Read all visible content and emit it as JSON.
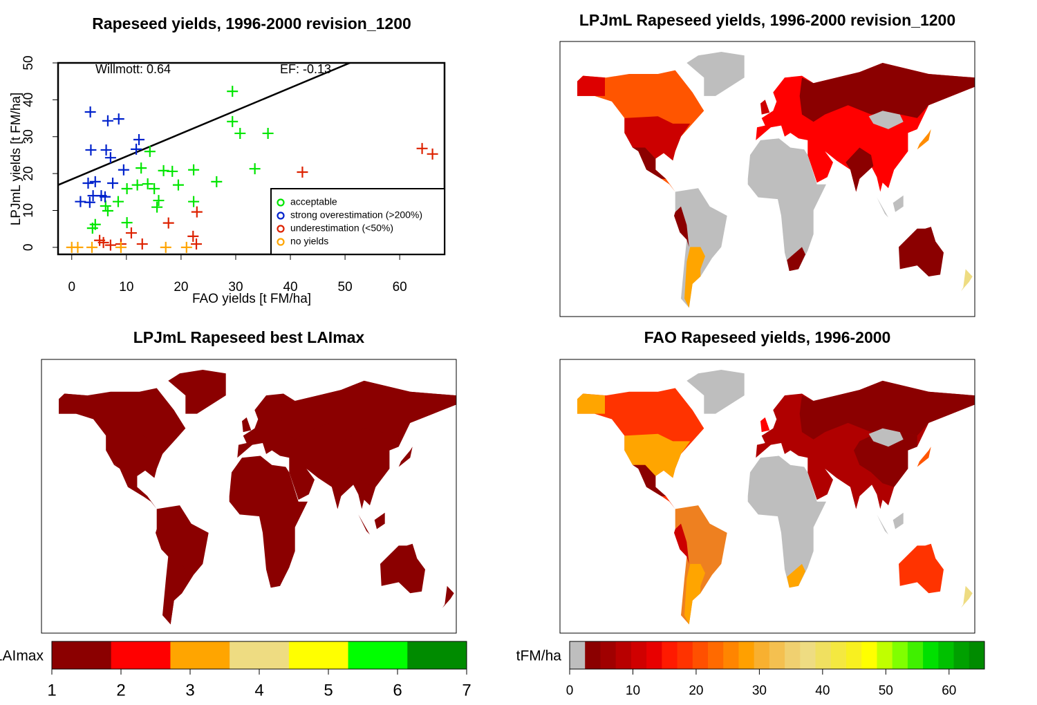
{
  "chart_data": [
    {
      "type": "scatter",
      "title": "Rapeseed yields, 1996-2000 revision_1200",
      "x_label": "FAO yields [t FM/ha]",
      "y_label": "LPJmL yields [t FM/ha]",
      "annotations": [
        "Willmott: 0.64",
        "EF: -0.13"
      ],
      "xlim": [
        -2.5,
        68.2
      ],
      "ylim": [
        -1.9,
        50
      ],
      "xticks": [
        0,
        10,
        20,
        30,
        40,
        50,
        60
      ],
      "yticks": [
        0,
        10,
        20,
        30,
        40,
        50
      ],
      "fit_line": {
        "intercept": 18.45,
        "slope": 0.62
      },
      "series": [
        {
          "name": "acceptable",
          "color": "#00e600",
          "x": [
            29.4,
            29.4,
            30.8,
            35.9,
            33.5,
            14.3,
            16.8,
            18.4,
            22.3,
            19.5,
            26.5,
            12.7,
            10.1,
            13.9,
            15.1,
            12.0,
            8.5,
            6.2,
            4.3,
            3.8,
            6.6,
            10.1,
            15.9,
            22.3,
            15.6
          ],
          "y": [
            42.3,
            34.1,
            30.9,
            30.9,
            21.3,
            26.0,
            20.8,
            20.6,
            21.0,
            16.9,
            17.8,
            21.5,
            15.9,
            17.2,
            15.9,
            16.9,
            12.4,
            11.2,
            6.2,
            5.2,
            9.9,
            6.7,
            12.7,
            12.4,
            10.9
          ]
        },
        {
          "name": "strong overestimation (>200%)",
          "color": "#0022cc",
          "x": [
            3.4,
            6.6,
            8.6,
            3.5,
            6.3,
            7.1,
            12.3,
            11.8,
            9.5,
            3.0,
            4.3,
            7.5,
            1.6,
            3.9,
            5.4,
            3.3,
            6.1
          ],
          "y": [
            36.7,
            34.3,
            34.8,
            26.4,
            26.4,
            24.3,
            29.2,
            26.6,
            21.0,
            17.4,
            17.8,
            17.4,
            12.4,
            14.0,
            14.0,
            12.2,
            13.7
          ]
        },
        {
          "name": "underestimation (<50%)",
          "color": "#dd2200",
          "x": [
            64.1,
            66.0,
            42.2,
            22.9,
            17.7,
            10.9,
            12.9,
            22.8,
            22.2,
            5.8,
            9.0,
            7.1,
            5.1
          ],
          "y": [
            26.8,
            25.3,
            20.4,
            9.6,
            6.6,
            3.9,
            0.9,
            0.9,
            3.0,
            1.3,
            0.9,
            0.6,
            1.9
          ]
        },
        {
          "name": "no yields",
          "color": "#ffa500",
          "x": [
            0,
            3.7,
            17.2,
            21.0,
            9.0,
            1.1
          ],
          "y": [
            0,
            0,
            0,
            0,
            0,
            0
          ]
        }
      ]
    },
    {
      "type": "map",
      "title": "LPJmL Rapeseed yields, 1996-2000 revision_1200"
    },
    {
      "type": "map",
      "title": "LPJmL Rapeseed best LAImax",
      "colorbar": {
        "label": "LAImax",
        "lim": [
          1,
          7
        ],
        "ticks": [
          1,
          2,
          3,
          4,
          5,
          6,
          7
        ],
        "colors": [
          "#8b0000",
          "#ff0000",
          "#ffa500",
          "#eedc82",
          "#ffff00",
          "#00ff00",
          "#008b00"
        ]
      }
    },
    {
      "type": "map",
      "title": "FAO Rapeseed yields, 1996-2000",
      "colorbar": {
        "label": "tFM/ha",
        "lim": [
          0,
          65.6
        ],
        "ticks": [
          0,
          10,
          20,
          30,
          40,
          50,
          60
        ],
        "colors": [
          "#bebebe",
          "#8b0000",
          "#a00000",
          "#b80000",
          "#d00000",
          "#e80000",
          "#ff1a00",
          "#ff3300",
          "#ff5000",
          "#ff6a00",
          "#ff8500",
          "#ffa000",
          "#f8b030",
          "#f4c050",
          "#f0d070",
          "#eedc82",
          "#f0e060",
          "#f4e840",
          "#f8f020",
          "#ffff00",
          "#c0ff00",
          "#80ff00",
          "#40f000",
          "#00e000",
          "#00c000",
          "#00a000",
          "#008b00"
        ]
      }
    }
  ]
}
